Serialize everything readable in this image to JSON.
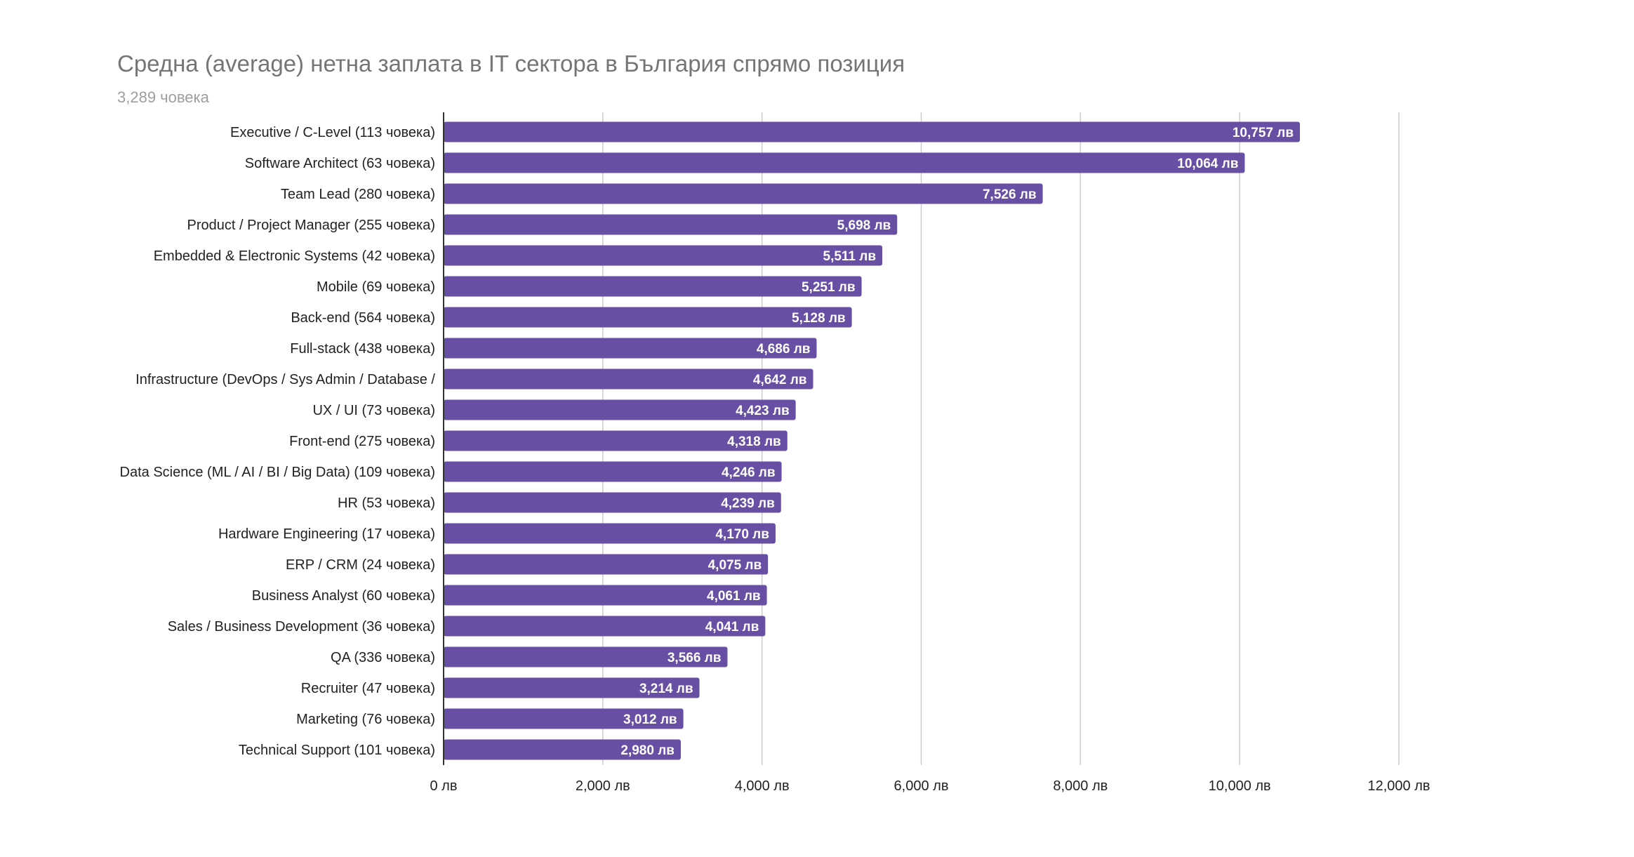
{
  "chart_data": {
    "type": "bar",
    "orientation": "horizontal",
    "title": "Средна (average) нетна заплата в IT сектора в България спрямо позиция",
    "subtitle": "3,289 човека",
    "categories": [
      "Executive / C-Level (113 човека)",
      "Software Architect (63 човека)",
      "Team Lead (280 човека)",
      "Product / Project Manager (255 човека)",
      "Embedded & Electronic Systems (42 човека)",
      "Mobile (69 човека)",
      "Back-end (564 човека)",
      "Full-stack (438 човека)",
      "Infrastructure (DevOps / Sys Admin / Database /",
      "UX / UI (73 човека)",
      "Front-end (275 човека)",
      "Data Science (ML / AI / BI / Big Data) (109 човека)",
      "HR (53 човека)",
      "Hardware Engineering (17 човека)",
      "ERP / CRM (24 човека)",
      "Business Analyst (60 човека)",
      "Sales / Business Development (36 човека)",
      "QA (336 човека)",
      "Recruiter (47 човека)",
      "Marketing (76 човека)",
      "Technical Support (101 човека)"
    ],
    "values": [
      10757,
      10064,
      7526,
      5698,
      5511,
      5251,
      5128,
      4686,
      4642,
      4423,
      4318,
      4246,
      4239,
      4170,
      4075,
      4061,
      4041,
      3566,
      3214,
      3012,
      2980
    ],
    "value_labels": [
      "10,757 лв",
      "10,064 лв",
      "7,526 лв",
      "5,698 лв",
      "5,511 лв",
      "5,251 лв",
      "5,128 лв",
      "4,686 лв",
      "4,642 лв",
      "4,423 лв",
      "4,318 лв",
      "4,246 лв",
      "4,239 лв",
      "4,170 лв",
      "4,075 лв",
      "4,061 лв",
      "4,041 лв",
      "3,566 лв",
      "3,214 лв",
      "3,012 лв",
      "2,980 лв"
    ],
    "xlim": [
      0,
      12000
    ],
    "x_ticks": [
      0,
      2000,
      4000,
      6000,
      8000,
      10000,
      12000
    ],
    "x_tick_labels": [
      "0 лв",
      "2,000 лв",
      "4,000 лв",
      "6,000 лв",
      "8,000 лв",
      "10,000 лв",
      "12,000 лв"
    ],
    "grid": "vertical",
    "legend": "none",
    "bar_color": "#6750a4",
    "text_color": "#222222",
    "grid_color": "#cccccc"
  }
}
